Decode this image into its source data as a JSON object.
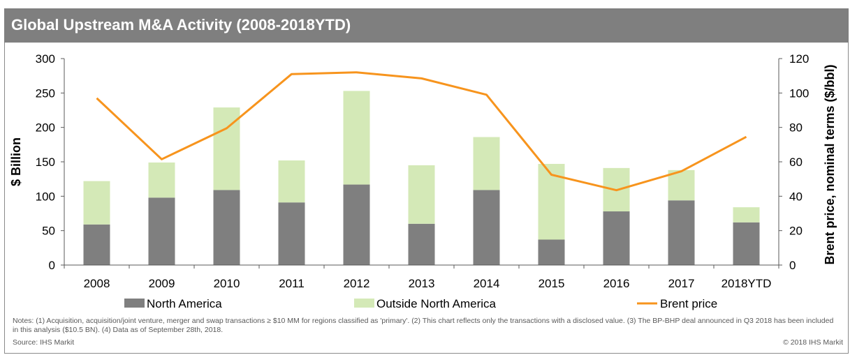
{
  "header": {
    "title": "Global Upstream M&A Activity (2008-2018YTD)"
  },
  "notes": "Notes: (1) Acquisition, acquisition/joint venture, merger and swap transactions ≥ $10 MM for regions classified as 'primary'. (2) This chart reflects only the transactions with a disclosed value. (3) The BP-BHP deal announced in Q3 2018 has been included in this analysis ($10.5 BN). (4) Data as of September 28th, 2018.",
  "source": "Source: IHS Markit",
  "copyright": "© 2018 IHS Markit",
  "chart_data": {
    "type": "bar",
    "stacked": true,
    "categories": [
      "2008",
      "2009",
      "2010",
      "2011",
      "2012",
      "2013",
      "2014",
      "2015",
      "2016",
      "2017",
      "2018YTD"
    ],
    "series": [
      {
        "name": "North America",
        "type": "bar",
        "axis": "left",
        "color": "#7f7f7f",
        "values": [
          59,
          98,
          109,
          91,
          117,
          60,
          109,
          37,
          78,
          94,
          62
        ]
      },
      {
        "name": "Outside North America",
        "type": "bar",
        "axis": "left",
        "color": "#d4e9b7",
        "values": [
          63,
          51,
          120,
          61,
          136,
          85,
          77,
          110,
          63,
          44,
          22
        ]
      },
      {
        "name": "Brent price",
        "type": "line",
        "axis": "right",
        "color": "#f7941d",
        "values": [
          97,
          61.5,
          79.5,
          111,
          112,
          108.5,
          99,
          52.5,
          43.5,
          54.5,
          74.5
        ]
      }
    ],
    "ylabel": "$ Billion",
    "ylim": [
      0,
      300
    ],
    "yticks": [
      "0",
      "50",
      "100",
      "150",
      "200",
      "250",
      "300"
    ],
    "y2label": "Brent price, nominal terms ($/bbl)",
    "y2lim": [
      0,
      120
    ],
    "y2ticks": [
      "0",
      "20",
      "40",
      "60",
      "80",
      "100",
      "120"
    ],
    "grid": false,
    "legend_position": "bottom"
  }
}
